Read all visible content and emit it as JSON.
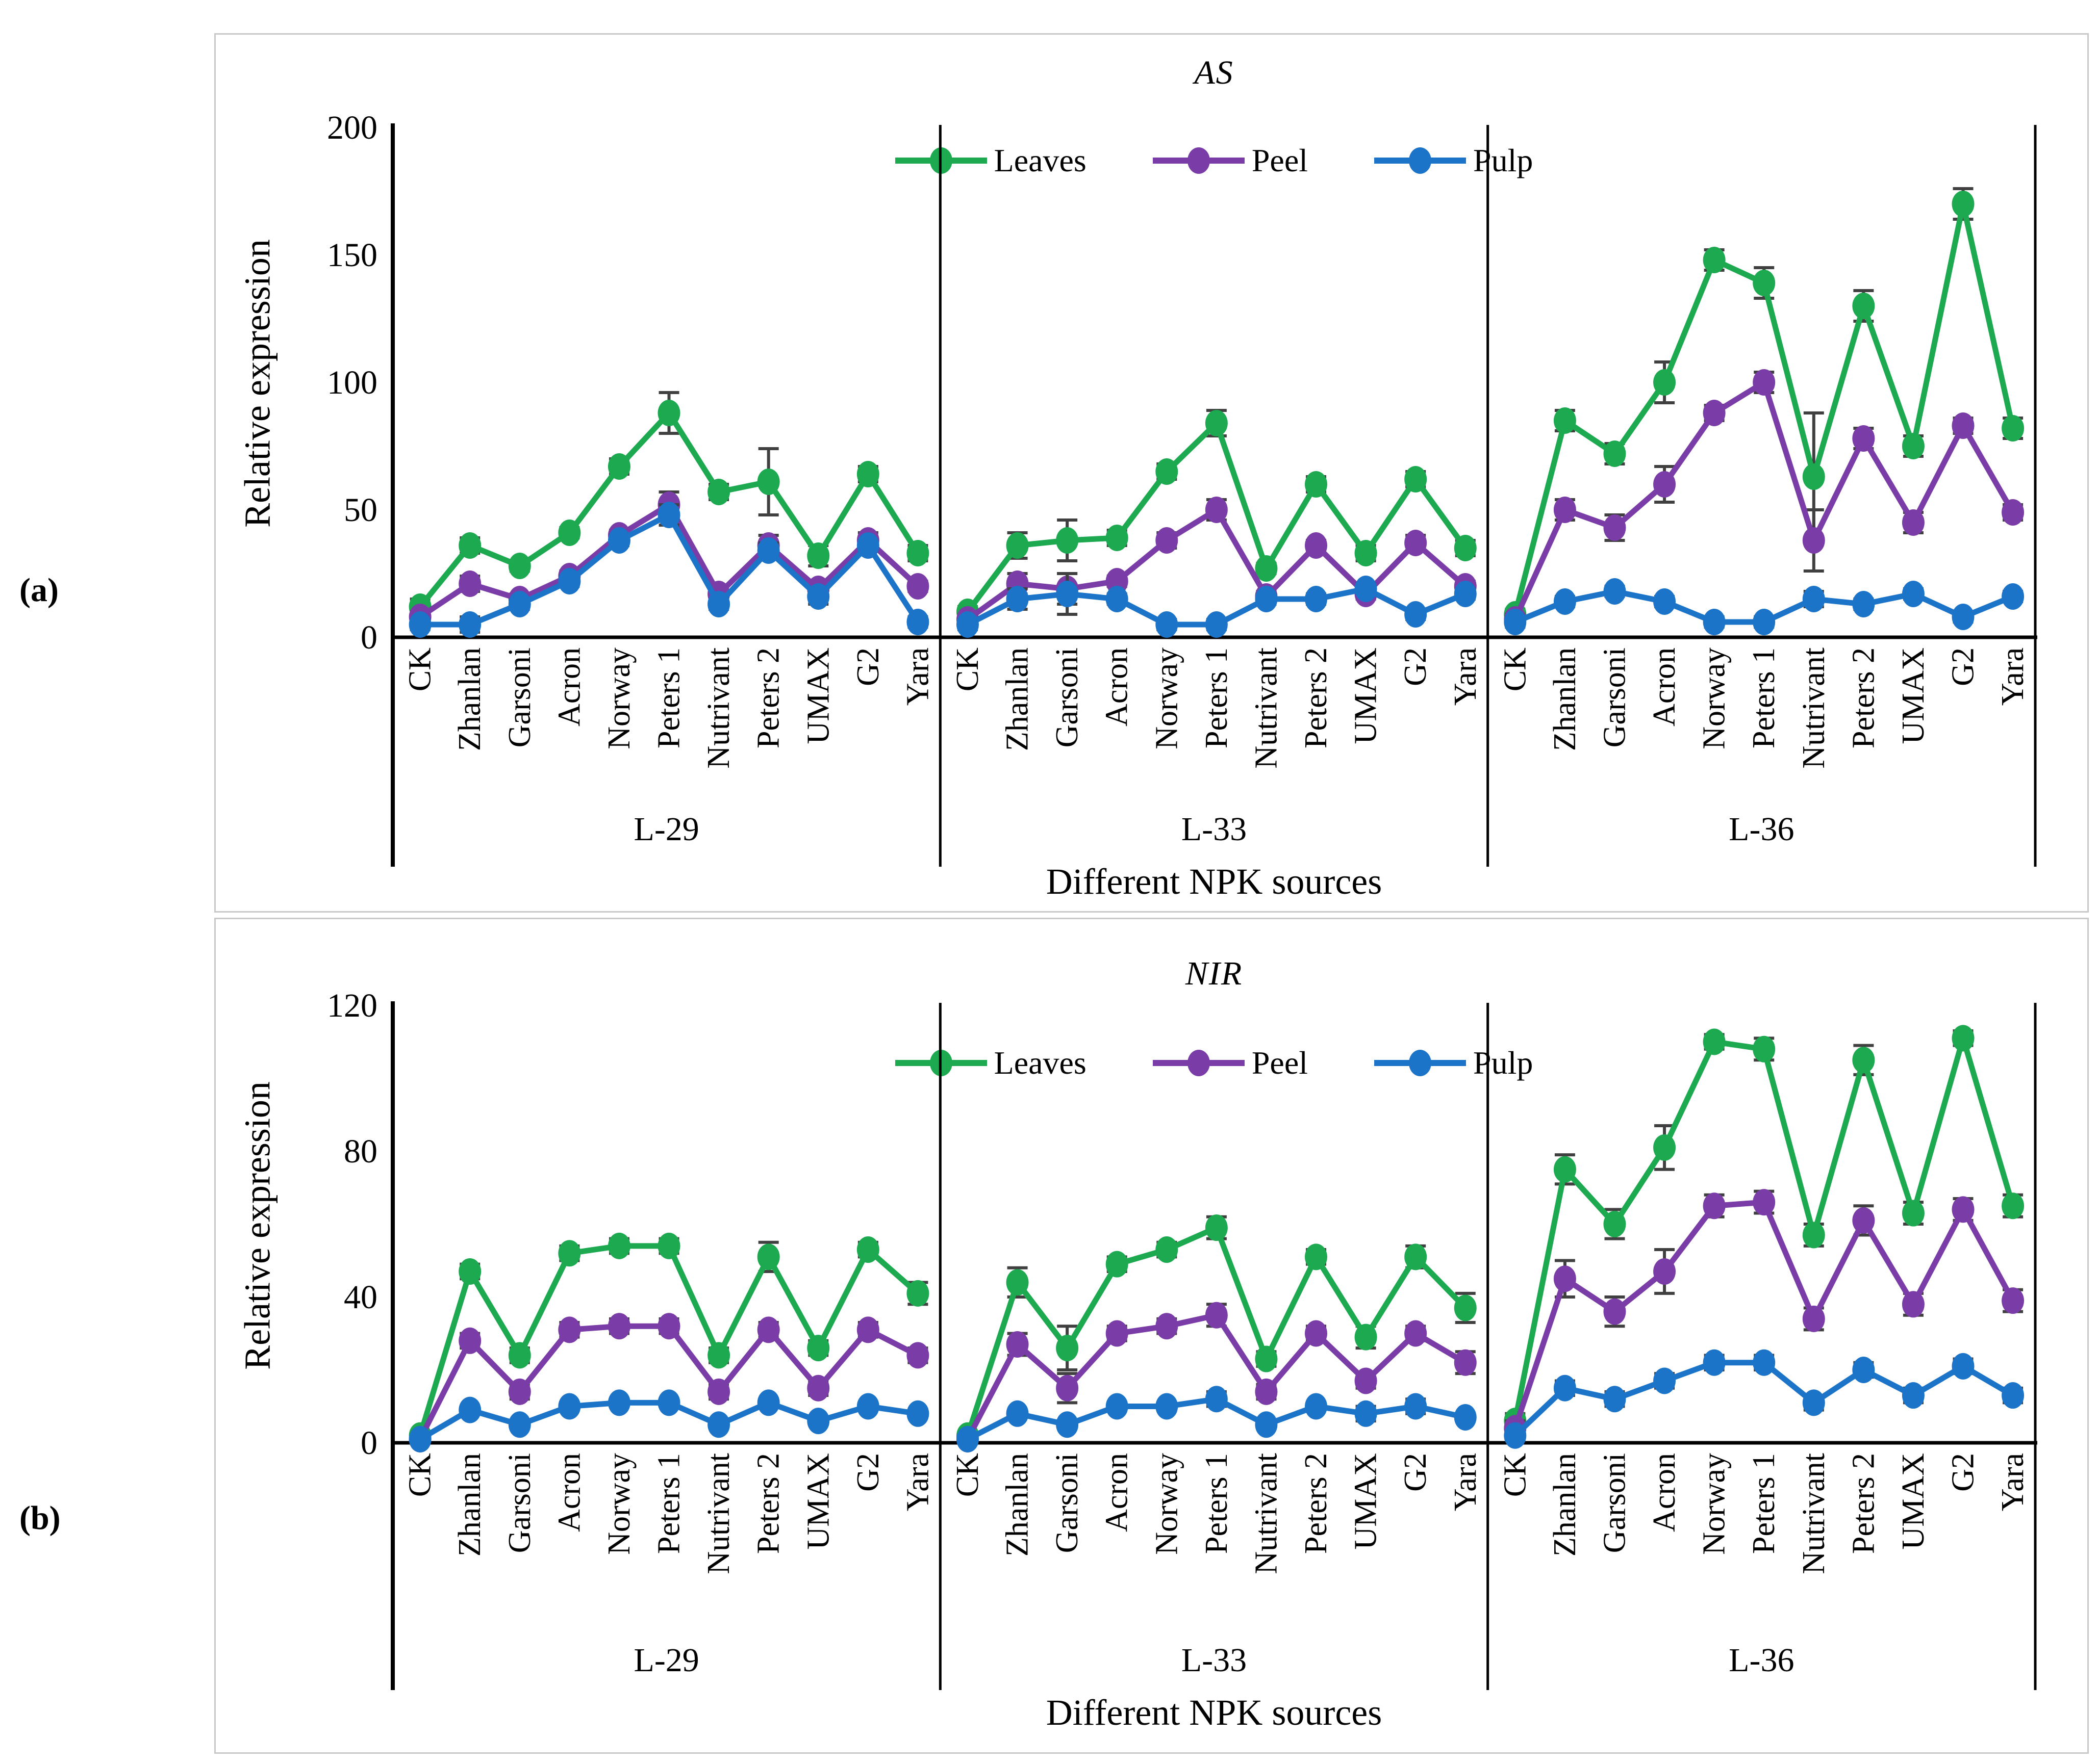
{
  "figure": {
    "panel_a_label": "(a)",
    "panel_b_label": "(b)",
    "background": "#ffffff",
    "box_border_color": "#c9c9c9",
    "error_bar_color": "#404040",
    "axis_color": "#000000"
  },
  "chart_data": [
    {
      "type": "line",
      "id": "a",
      "title": "AS",
      "ylabel": "Relative expression",
      "xlabel": "Different NPK sources",
      "ylim": [
        0,
        200
      ],
      "yticks": [
        0,
        50,
        100,
        150,
        200
      ],
      "grid": false,
      "legend_position": "top-center",
      "legend": [
        "Leaves",
        "Peel",
        "Pulp"
      ],
      "series_colors": [
        "#1CA94F",
        "#7A3CA6",
        "#1C74C9"
      ],
      "categories": [
        "CK",
        "Zhanlan",
        "Garsoni",
        "Acron",
        "Norway",
        "Peters 1",
        "Nutrivant",
        "Peters 2",
        "UMAX",
        "G2",
        "Yara"
      ],
      "groups": [
        {
          "label": "L-29",
          "series": [
            {
              "name": "Leaves",
              "color": "#1CA94F",
              "values": [
                12,
                36,
                28,
                41,
                67,
                88,
                57,
                61,
                32,
                64,
                33
              ],
              "errors": [
                3,
                3,
                2,
                2,
                3,
                8,
                3,
                13,
                4,
                3,
                3
              ]
            },
            {
              "name": "Peel",
              "color": "#7A3CA6",
              "values": [
                8,
                21,
                15,
                24,
                40,
                52,
                17,
                36,
                19,
                38,
                20
              ],
              "errors": [
                2,
                3,
                2,
                2,
                2,
                5,
                2,
                4,
                3,
                3,
                2
              ]
            },
            {
              "name": "Pulp",
              "color": "#1C74C9",
              "values": [
                5,
                5,
                13,
                22,
                38,
                48,
                13,
                34,
                16,
                36,
                6
              ],
              "errors": [
                2,
                3,
                2,
                2,
                2,
                4,
                2,
                3,
                3,
                2,
                2
              ]
            }
          ]
        },
        {
          "label": "L-33",
          "series": [
            {
              "name": "Leaves",
              "color": "#1CA94F",
              "values": [
                10,
                36,
                38,
                39,
                65,
                84,
                27,
                60,
                33,
                62,
                35
              ],
              "errors": [
                2,
                5,
                8,
                3,
                3,
                5,
                2,
                3,
                3,
                3,
                3
              ]
            },
            {
              "name": "Peel",
              "color": "#7A3CA6",
              "values": [
                7,
                21,
                19,
                22,
                38,
                50,
                16,
                36,
                17,
                37,
                20
              ],
              "errors": [
                2,
                4,
                6,
                2,
                3,
                4,
                2,
                2,
                2,
                3,
                2
              ]
            },
            {
              "name": "Pulp",
              "color": "#1C74C9",
              "values": [
                5,
                15,
                17,
                15,
                5,
                5,
                15,
                15,
                19,
                9,
                17
              ],
              "errors": [
                2,
                4,
                8,
                2,
                2,
                2,
                2,
                2,
                2,
                2,
                2
              ]
            }
          ]
        },
        {
          "label": "L-36",
          "series": [
            {
              "name": "Leaves",
              "color": "#1CA94F",
              "values": [
                9,
                85,
                72,
                100,
                148,
                139,
                63,
                130,
                75,
                170,
                82
              ],
              "errors": [
                2,
                4,
                4,
                8,
                4,
                6,
                25,
                6,
                4,
                6,
                4
              ]
            },
            {
              "name": "Peel",
              "color": "#7A3CA6",
              "values": [
                7,
                50,
                43,
                60,
                88,
                100,
                38,
                78,
                45,
                83,
                49
              ],
              "errors": [
                2,
                4,
                5,
                7,
                3,
                4,
                12,
                4,
                4,
                3,
                3
              ]
            },
            {
              "name": "Pulp",
              "color": "#1C74C9",
              "values": [
                6,
                14,
                18,
                14,
                6,
                6,
                15,
                13,
                17,
                8,
                16
              ],
              "errors": [
                2,
                2,
                2,
                2,
                2,
                2,
                3,
                2,
                2,
                2,
                2
              ]
            }
          ]
        }
      ]
    },
    {
      "type": "line",
      "id": "b",
      "title": "NIR",
      "ylabel": "Relative expression",
      "xlabel": "Different NPK sources",
      "ylim": [
        0,
        120
      ],
      "yticks": [
        0,
        40,
        80,
        120
      ],
      "grid": false,
      "legend_position": "top-center",
      "legend": [
        "Leaves",
        "Peel",
        "Pulp"
      ],
      "series_colors": [
        "#1CA94F",
        "#7A3CA6",
        "#1C74C9"
      ],
      "categories": [
        "CK",
        "Zhanlan",
        "Garsoni",
        "Acron",
        "Norway",
        "Peters 1",
        "Nutrivant",
        "Peters 2",
        "UMAX",
        "G2",
        "Yara"
      ],
      "groups": [
        {
          "label": "L-29",
          "series": [
            {
              "name": "Leaves",
              "color": "#1CA94F",
              "values": [
                2,
                47,
                24,
                52,
                54,
                54,
                24,
                51,
                26,
                53,
                41
              ],
              "errors": [
                1,
                2,
                2,
                2,
                2,
                2,
                2,
                4,
                2,
                2,
                3
              ]
            },
            {
              "name": "Peel",
              "color": "#7A3CA6",
              "values": [
                1,
                28,
                14,
                31,
                32,
                32,
                14,
                31,
                15,
                31,
                24
              ],
              "errors": [
                1,
                2,
                2,
                2,
                2,
                2,
                2,
                2,
                2,
                2,
                2
              ]
            },
            {
              "name": "Pulp",
              "color": "#1C74C9",
              "values": [
                1,
                9,
                5,
                10,
                11,
                11,
                5,
                11,
                6,
                10,
                8
              ],
              "errors": [
                1,
                1,
                1,
                1,
                1,
                1,
                1,
                1,
                1,
                1,
                1
              ]
            }
          ]
        },
        {
          "label": "L-33",
          "series": [
            {
              "name": "Leaves",
              "color": "#1CA94F",
              "values": [
                2,
                44,
                26,
                49,
                53,
                59,
                23,
                51,
                29,
                51,
                37
              ],
              "errors": [
                1,
                4,
                6,
                2,
                2,
                3,
                2,
                2,
                3,
                3,
                4
              ]
            },
            {
              "name": "Peel",
              "color": "#7A3CA6",
              "values": [
                1,
                27,
                15,
                30,
                32,
                35,
                14,
                30,
                17,
                30,
                22
              ],
              "errors": [
                1,
                3,
                4,
                2,
                2,
                3,
                2,
                2,
                2,
                2,
                3
              ]
            },
            {
              "name": "Pulp",
              "color": "#1C74C9",
              "values": [
                1,
                8,
                5,
                10,
                10,
                12,
                5,
                10,
                8,
                10,
                7
              ],
              "errors": [
                1,
                1,
                1,
                1,
                1,
                2,
                1,
                1,
                2,
                2,
                1
              ]
            }
          ]
        },
        {
          "label": "L-36",
          "series": [
            {
              "name": "Leaves",
              "color": "#1CA94F",
              "values": [
                6,
                75,
                60,
                81,
                110,
                108,
                57,
                105,
                63,
                111,
                65
              ],
              "errors": [
                2,
                4,
                4,
                6,
                2,
                3,
                3,
                4,
                3,
                2,
                3
              ]
            },
            {
              "name": "Peel",
              "color": "#7A3CA6",
              "values": [
                4,
                45,
                36,
                47,
                65,
                66,
                34,
                61,
                38,
                64,
                39
              ],
              "errors": [
                2,
                5,
                4,
                6,
                3,
                3,
                3,
                4,
                3,
                3,
                3
              ]
            },
            {
              "name": "Pulp",
              "color": "#1C74C9",
              "values": [
                2,
                15,
                12,
                17,
                22,
                22,
                11,
                20,
                13,
                21,
                13
              ],
              "errors": [
                1,
                2,
                2,
                2,
                2,
                2,
                2,
                2,
                2,
                2,
                2
              ]
            }
          ]
        }
      ]
    }
  ]
}
